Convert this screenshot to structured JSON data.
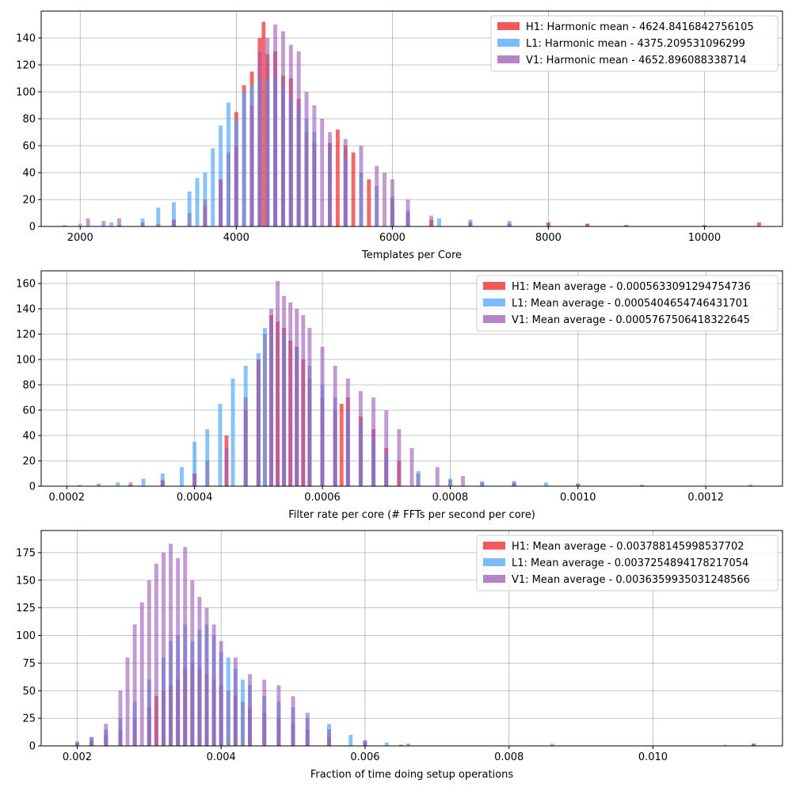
{
  "colors": {
    "H1": "#ee2222",
    "L1": "#4da6ff",
    "V1": "#9b59b6",
    "grid": "#b0b0b0",
    "axis": "#000000"
  },
  "chart_data": [
    {
      "type": "bar",
      "xlabel": "Templates per Core",
      "ylabel": "",
      "xlim": [
        1500,
        11000
      ],
      "ylim": [
        0,
        160
      ],
      "xticks": [
        2000,
        4000,
        6000,
        8000,
        10000
      ],
      "xtick_labels": [
        "2000",
        "4000",
        "6000",
        "8000",
        "10000"
      ],
      "yticks": [
        0,
        20,
        40,
        60,
        80,
        100,
        120,
        140
      ],
      "ytick_labels": [
        "0",
        "20",
        "40",
        "60",
        "80",
        "100",
        "120",
        "140"
      ],
      "grid": true,
      "legend_position": "top-right",
      "series": [
        {
          "name": "H1: Harmonic mean  - 4624.8416842756105",
          "x": [
            2000,
            2500,
            3000,
            3200,
            3400,
            3600,
            3800,
            3900,
            4000,
            4100,
            4200,
            4300,
            4350,
            4400,
            4500,
            4600,
            4700,
            4800,
            4900,
            5000,
            5200,
            5300,
            5400,
            5500,
            5700,
            6000,
            6200,
            6500,
            7000,
            7500,
            8000,
            8500,
            9000,
            10700
          ],
          "values": [
            0,
            1,
            2,
            5,
            10,
            20,
            35,
            55,
            85,
            105,
            115,
            140,
            152,
            128,
            130,
            112,
            110,
            95,
            70,
            62,
            62,
            72,
            60,
            55,
            35,
            20,
            10,
            5,
            3,
            2,
            3,
            2,
            1,
            3
          ]
        },
        {
          "name": "L1: Harmonic mean  - 4375.209531096299",
          "x": [
            1800,
            2000,
            2400,
            2800,
            3000,
            3200,
            3400,
            3500,
            3600,
            3700,
            3800,
            3900,
            4000,
            4100,
            4200,
            4300,
            4400,
            4500,
            4600,
            4700,
            4800,
            4900,
            5000,
            5200,
            5400,
            5600,
            5800,
            6000,
            6200,
            6600,
            7000,
            7500,
            8000,
            9000,
            10000
          ],
          "values": [
            1,
            2,
            3,
            6,
            14,
            18,
            26,
            36,
            40,
            58,
            75,
            92,
            80,
            100,
            105,
            110,
            110,
            112,
            105,
            95,
            90,
            80,
            70,
            60,
            50,
            40,
            30,
            22,
            12,
            6,
            3,
            2,
            1,
            1,
            1
          ]
        },
        {
          "name": "V1: Harmonic mean  - 4652.896088338714",
          "x": [
            2100,
            2300,
            2500,
            2800,
            3200,
            3600,
            3800,
            4000,
            4200,
            4300,
            4400,
            4500,
            4600,
            4700,
            4800,
            4900,
            5000,
            5100,
            5200,
            5400,
            5600,
            5800,
            5900,
            6000,
            6200,
            6500,
            7000,
            7500,
            8000,
            8500,
            9000,
            10000
          ],
          "values": [
            6,
            4,
            6,
            3,
            5,
            15,
            35,
            60,
            90,
            130,
            140,
            150,
            145,
            135,
            130,
            100,
            90,
            80,
            70,
            65,
            60,
            45,
            40,
            35,
            20,
            8,
            5,
            4,
            2,
            2,
            1,
            1
          ]
        }
      ]
    },
    {
      "type": "bar",
      "xlabel": "Filter rate per core (# FFTs per second per core)",
      "ylabel": "",
      "xlim": [
        0.00016,
        0.00132
      ],
      "ylim": [
        0,
        170
      ],
      "xticks": [
        0.0002,
        0.0004,
        0.0006,
        0.0008,
        0.001,
        0.0012
      ],
      "xtick_labels": [
        "0.0002",
        "0.0004",
        "0.0006",
        "0.0008",
        "0.0010",
        "0.0012"
      ],
      "yticks": [
        0,
        20,
        40,
        60,
        80,
        100,
        120,
        140,
        160
      ],
      "ytick_labels": [
        "0",
        "20",
        "40",
        "60",
        "80",
        "100",
        "120",
        "140",
        "160"
      ],
      "grid": true,
      "legend_position": "top-right",
      "series": [
        {
          "name": "H1: Mean average - 0.0005633091294754736",
          "x": [
            0.0003,
            0.00035,
            0.0004,
            0.00042,
            0.00045,
            0.00048,
            0.0005,
            0.00051,
            0.00052,
            0.00053,
            0.00054,
            0.00055,
            0.00056,
            0.00057,
            0.00058,
            0.0006,
            0.00062,
            0.00063,
            0.00064,
            0.00066,
            0.00068,
            0.0007,
            0.00072,
            0.00075,
            0.0008,
            0.00085,
            0.0009,
            0.001,
            0.00127
          ],
          "values": [
            1,
            5,
            10,
            20,
            40,
            70,
            100,
            120,
            135,
            130,
            125,
            115,
            110,
            100,
            85,
            70,
            60,
            65,
            70,
            55,
            45,
            30,
            20,
            10,
            5,
            3,
            2,
            1,
            1
          ]
        },
        {
          "name": "L1: Mean average - 0.0005404654746431701",
          "x": [
            0.00022,
            0.00028,
            0.00032,
            0.00035,
            0.00038,
            0.0004,
            0.00042,
            0.00044,
            0.00046,
            0.00048,
            0.0005,
            0.00051,
            0.00052,
            0.00054,
            0.00056,
            0.00058,
            0.0006,
            0.00062,
            0.00064,
            0.00066,
            0.00068,
            0.0007,
            0.00075,
            0.0008,
            0.00085,
            0.0009,
            0.00095,
            0.001,
            0.0011
          ],
          "values": [
            1,
            3,
            6,
            10,
            15,
            35,
            45,
            65,
            85,
            95,
            105,
            125,
            130,
            120,
            110,
            95,
            80,
            70,
            60,
            50,
            40,
            25,
            12,
            6,
            4,
            3,
            3,
            2,
            1
          ]
        },
        {
          "name": "V1: Mean average - 0.0005767506418322645",
          "x": [
            0.00025,
            0.0003,
            0.00035,
            0.0004,
            0.00045,
            0.00048,
            0.0005,
            0.00052,
            0.00053,
            0.00054,
            0.00055,
            0.00056,
            0.00057,
            0.00058,
            0.0006,
            0.00062,
            0.00064,
            0.00066,
            0.00068,
            0.0007,
            0.00072,
            0.00074,
            0.00078,
            0.00082,
            0.0009,
            0.001,
            0.0011
          ],
          "values": [
            2,
            3,
            4,
            10,
            30,
            60,
            100,
            140,
            162,
            150,
            145,
            140,
            135,
            125,
            110,
            95,
            85,
            75,
            70,
            60,
            45,
            30,
            15,
            8,
            4,
            2,
            1
          ]
        }
      ]
    },
    {
      "type": "bar",
      "xlabel": "Fraction of time doing setup operations",
      "ylabel": "",
      "xlim": [
        0.0015,
        0.0118
      ],
      "ylim": [
        0,
        195
      ],
      "xticks": [
        0.002,
        0.004,
        0.006,
        0.008,
        0.01
      ],
      "xtick_labels": [
        "0.002",
        "0.004",
        "0.006",
        "0.008",
        "0.010"
      ],
      "yticks": [
        0,
        25,
        50,
        75,
        100,
        125,
        150,
        175
      ],
      "ytick_labels": [
        "0",
        "25",
        "50",
        "75",
        "100",
        "125",
        "150",
        "175"
      ],
      "grid": true,
      "legend_position": "top-right",
      "series": [
        {
          "name": "H1: Mean average - 0.003788145998537702",
          "x": [
            0.002,
            0.0022,
            0.0024,
            0.0026,
            0.0028,
            0.003,
            0.0031,
            0.0032,
            0.0033,
            0.0034,
            0.0035,
            0.0036,
            0.0037,
            0.0038,
            0.0039,
            0.004,
            0.0041,
            0.0042,
            0.0043,
            0.0044,
            0.0046,
            0.0048,
            0.005,
            0.0052,
            0.0055,
            0.006,
            0.0065,
            0.0114
          ],
          "values": [
            2,
            5,
            10,
            15,
            25,
            35,
            45,
            50,
            55,
            60,
            70,
            75,
            70,
            65,
            60,
            55,
            50,
            45,
            40,
            35,
            30,
            25,
            20,
            15,
            8,
            3,
            1,
            2
          ]
        },
        {
          "name": "L1: Mean average - 0.0037254894178217054",
          "x": [
            0.002,
            0.0022,
            0.0024,
            0.0026,
            0.0028,
            0.003,
            0.0032,
            0.0033,
            0.0034,
            0.0035,
            0.0036,
            0.0037,
            0.0038,
            0.0039,
            0.004,
            0.0041,
            0.0042,
            0.0043,
            0.0044,
            0.0046,
            0.0048,
            0.005,
            0.0052,
            0.0055,
            0.0058,
            0.006,
            0.0063,
            0.0086,
            0.011
          ],
          "values": [
            3,
            8,
            15,
            25,
            40,
            60,
            80,
            95,
            100,
            110,
            95,
            105,
            110,
            100,
            85,
            80,
            70,
            60,
            55,
            45,
            40,
            35,
            25,
            20,
            10,
            5,
            3,
            2,
            1
          ]
        },
        {
          "name": "V1: Mean average - 0.0036359935031248566",
          "x": [
            0.002,
            0.0022,
            0.0024,
            0.0026,
            0.0027,
            0.0028,
            0.0029,
            0.003,
            0.0031,
            0.0032,
            0.0033,
            0.0034,
            0.0035,
            0.0036,
            0.0037,
            0.0038,
            0.0039,
            0.004,
            0.0042,
            0.0044,
            0.0046,
            0.0048,
            0.005,
            0.0052,
            0.0055,
            0.006,
            0.0066,
            0.0114
          ],
          "values": [
            4,
            8,
            20,
            50,
            80,
            110,
            130,
            150,
            165,
            175,
            183,
            170,
            180,
            150,
            135,
            125,
            110,
            95,
            80,
            65,
            60,
            55,
            45,
            30,
            15,
            5,
            2,
            2
          ]
        }
      ]
    }
  ]
}
